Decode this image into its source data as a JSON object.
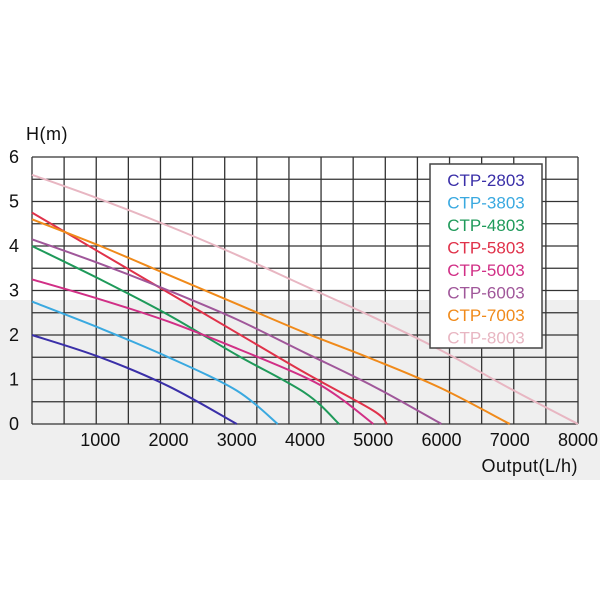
{
  "chart_data": {
    "type": "line",
    "ylabel": "H(m)",
    "xlabel": "Output(L/h)",
    "xlim": [
      0,
      8000
    ],
    "ylim": [
      0,
      6
    ],
    "x_ticks": [
      "1000",
      "2000",
      "3000",
      "4000",
      "5000",
      "6000",
      "7000",
      "8000"
    ],
    "y_ticks": [
      "0",
      "1",
      "2",
      "3",
      "4",
      "5",
      "6"
    ],
    "grid": true,
    "legend_position": "top-right",
    "series": [
      {
        "name": "CTP-2803",
        "color": "#3a2fa8",
        "points": [
          [
            0,
            2.0
          ],
          [
            1000,
            1.5
          ],
          [
            2000,
            0.85
          ],
          [
            3000,
            0.0
          ]
        ]
      },
      {
        "name": "CTP-3803",
        "color": "#3aa9e0",
        "points": [
          [
            0,
            2.75
          ],
          [
            1000,
            2.15
          ],
          [
            2000,
            1.5
          ],
          [
            3000,
            0.75
          ],
          [
            3600,
            0.0
          ]
        ]
      },
      {
        "name": "CTP-4803",
        "color": "#1f9a5a",
        "points": [
          [
            0,
            4.0
          ],
          [
            1000,
            3.25
          ],
          [
            2000,
            2.45
          ],
          [
            3000,
            1.55
          ],
          [
            4000,
            0.7
          ],
          [
            4500,
            0.0
          ]
        ]
      },
      {
        "name": "CTP-5803",
        "color": "#e0324a",
        "points": [
          [
            0,
            4.75
          ],
          [
            1000,
            3.85
          ],
          [
            2000,
            2.95
          ],
          [
            3000,
            2.05
          ],
          [
            4000,
            1.15
          ],
          [
            5000,
            0.3
          ],
          [
            5200,
            0.0
          ]
        ]
      },
      {
        "name": "CTP-5003",
        "color": "#d12f86",
        "points": [
          [
            0,
            3.25
          ],
          [
            1000,
            2.8
          ],
          [
            2000,
            2.3
          ],
          [
            3000,
            1.7
          ],
          [
            4000,
            1.05
          ],
          [
            4500,
            0.6
          ],
          [
            5000,
            0.0
          ]
        ]
      },
      {
        "name": "CTP-6003",
        "color": "#a0579a",
        "points": [
          [
            0,
            4.15
          ],
          [
            1000,
            3.6
          ],
          [
            2000,
            3.0
          ],
          [
            3000,
            2.35
          ],
          [
            4000,
            1.6
          ],
          [
            5000,
            0.85
          ],
          [
            6000,
            0.0
          ]
        ]
      },
      {
        "name": "CTP-7003",
        "color": "#f08a1a",
        "points": [
          [
            0,
            4.6
          ],
          [
            1000,
            4.0
          ],
          [
            2000,
            3.35
          ],
          [
            3000,
            2.7
          ],
          [
            4000,
            2.05
          ],
          [
            5000,
            1.45
          ],
          [
            6000,
            0.8
          ],
          [
            7000,
            0.0
          ]
        ]
      },
      {
        "name": "CTP-8003",
        "color": "#e8b6c2",
        "points": [
          [
            0,
            5.6
          ],
          [
            1000,
            5.05
          ],
          [
            2000,
            4.45
          ],
          [
            3000,
            3.8
          ],
          [
            4000,
            3.1
          ],
          [
            5000,
            2.4
          ],
          [
            6000,
            1.65
          ],
          [
            7000,
            0.8
          ],
          [
            8000,
            0.0
          ]
        ]
      }
    ]
  }
}
